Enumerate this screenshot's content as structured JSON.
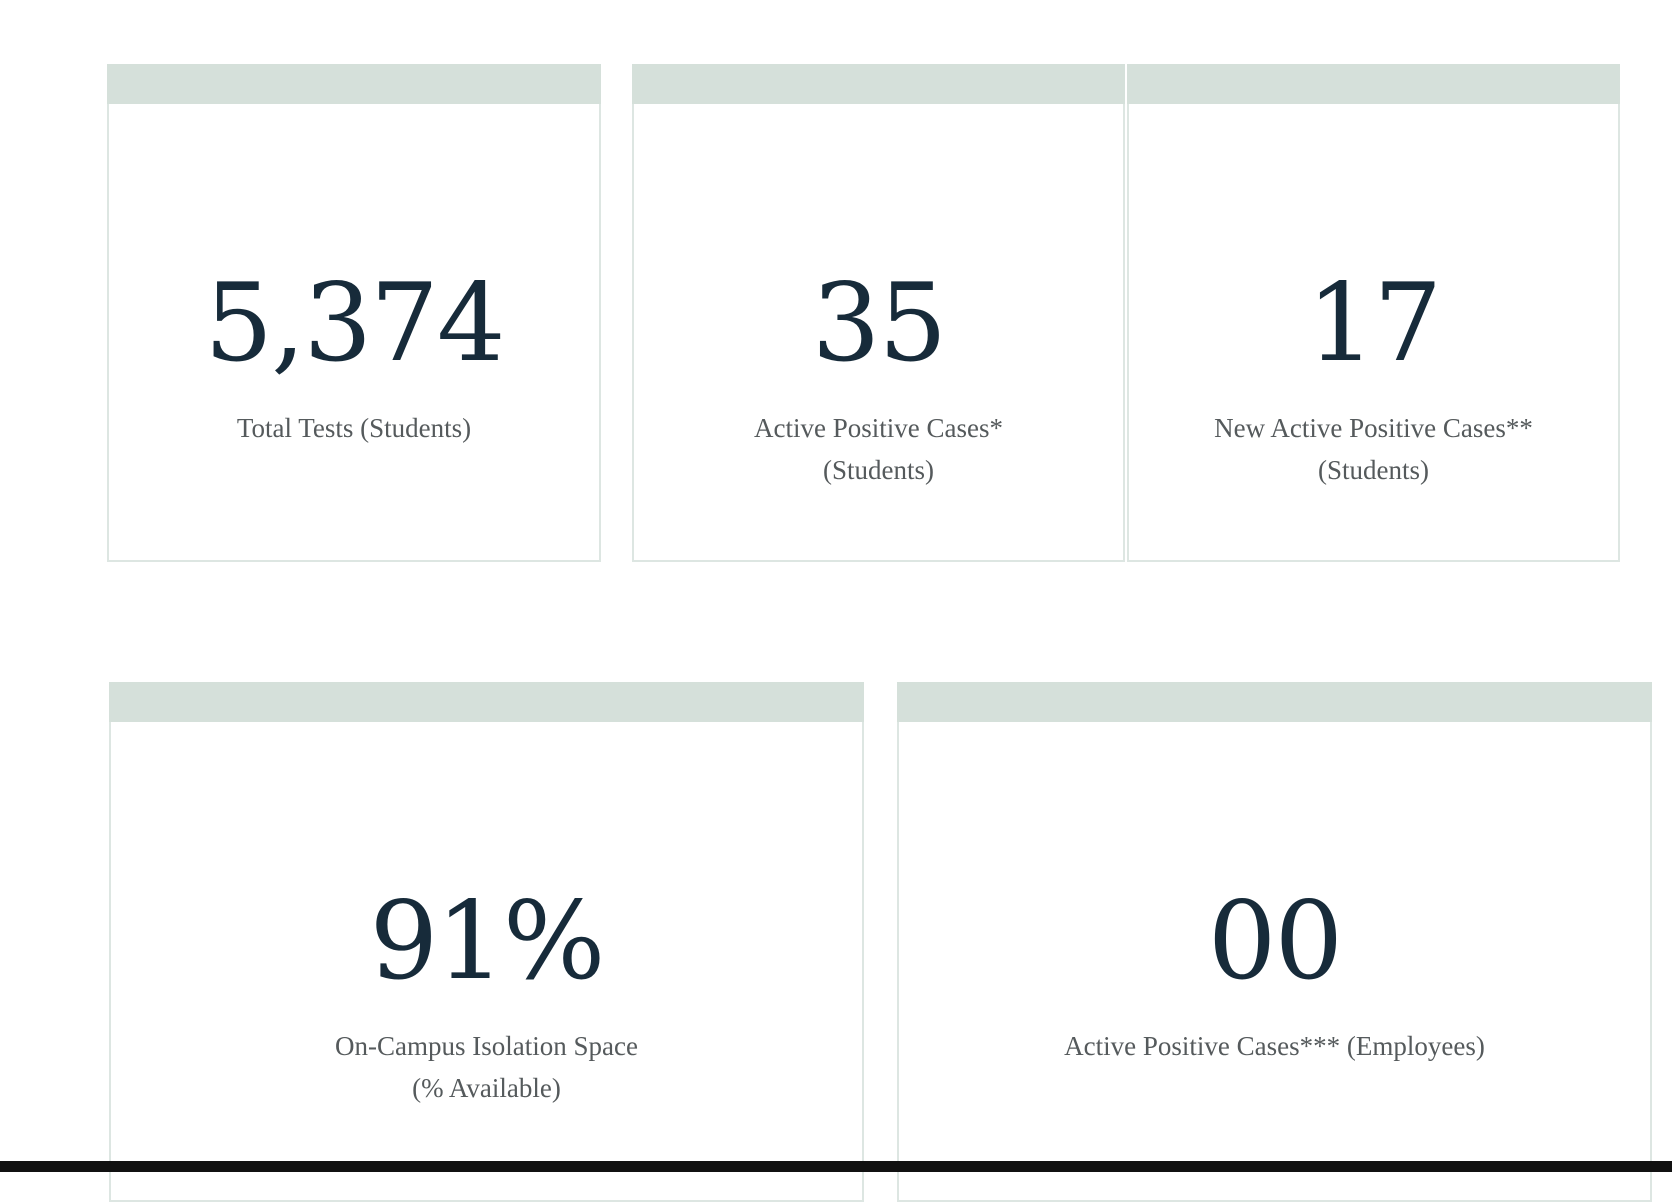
{
  "row1": [
    {
      "value": "5,374",
      "label_lines": [
        "Total Tests (Students)"
      ]
    },
    {
      "value": "35",
      "label_lines": [
        "Active Positive Cases*",
        "(Students)"
      ]
    },
    {
      "value": "17",
      "label_lines": [
        "New Active Positive Cases**",
        "(Students)"
      ]
    }
  ],
  "row2": [
    {
      "value": "91%",
      "label_lines": [
        "On-Campus Isolation Space",
        "(% Available)"
      ]
    },
    {
      "value": "00",
      "label_lines": [
        "Active Positive Cases*** (Employees)"
      ]
    }
  ],
  "colors": {
    "header": "#d5e0da",
    "border": "#dde6e2",
    "value": "#172b3a",
    "label": "#555a5c"
  }
}
